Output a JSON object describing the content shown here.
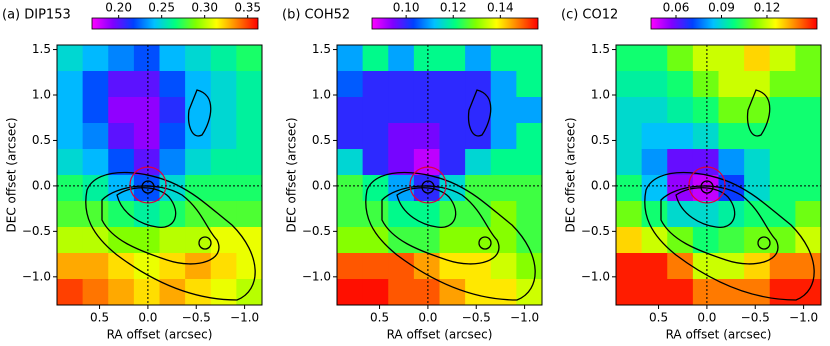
{
  "chart_data": [
    {
      "type": "heatmap",
      "title": "(a) DIP153",
      "xlabel": "RA offset (arcsec)",
      "ylabel": "DEC offset (arcsec)",
      "xlim": [
        0.94,
        -1.18
      ],
      "ylim": [
        -1.31,
        1.55
      ],
      "xticks": [
        0.5,
        {
          "value": 0,
          "label": "0.0"
        },
        {
          "value": -0.5,
          "label": "−0.5"
        },
        {
          "value": -1,
          "label": "−1.0"
        }
      ],
      "yticks": [
        1.5,
        {
          "value": 1,
          "label": "1.0"
        },
        0.5,
        {
          "value": 0,
          "label": "0.0"
        },
        {
          "value": -0.5,
          "label": "−0.5"
        },
        {
          "value": -1,
          "label": "−1.0"
        }
      ],
      "clim": [
        0.169,
        0.362
      ],
      "cticks": [
        {
          "value": 0.2,
          "label": "0.20"
        },
        {
          "value": 0.25,
          "label": "0.25"
        },
        {
          "value": 0.3,
          "label": "0.30"
        },
        {
          "value": 0.35,
          "label": "0.35"
        }
      ],
      "colormap": [
        "#ff00ff",
        "#8000ff",
        "#0040ff",
        "#00c0ff",
        "#00ff80",
        "#80ff00",
        "#ffff00",
        "#ff8000",
        "#ff0000"
      ],
      "z": [
        [
          0.25,
          0.24,
          0.23,
          0.22,
          0.24,
          0.25,
          0.26,
          0.27
        ],
        [
          0.24,
          0.22,
          0.2,
          0.2,
          0.22,
          0.24,
          0.25,
          0.26
        ],
        [
          0.24,
          0.22,
          0.19,
          0.19,
          0.21,
          0.24,
          0.25,
          0.26
        ],
        [
          0.24,
          0.23,
          0.2,
          0.19,
          0.22,
          0.24,
          0.25,
          0.26
        ],
        [
          0.25,
          0.24,
          0.22,
          0.2,
          0.23,
          0.25,
          0.26,
          0.26
        ],
        [
          0.27,
          0.26,
          0.24,
          0.22,
          0.25,
          0.27,
          0.27,
          0.27
        ],
        [
          0.28,
          0.28,
          0.27,
          0.26,
          0.27,
          0.28,
          0.28,
          0.28
        ],
        [
          0.3,
          0.3,
          0.29,
          0.29,
          0.3,
          0.3,
          0.31,
          0.31
        ],
        [
          0.33,
          0.33,
          0.32,
          0.31,
          0.32,
          0.33,
          0.32,
          0.31
        ],
        [
          0.35,
          0.34,
          0.33,
          0.32,
          0.33,
          0.32,
          0.31,
          0.3
        ]
      ]
    },
    {
      "type": "heatmap",
      "title": "(b) COH52",
      "xlabel": "RA offset (arcsec)",
      "ylabel": "DEC offset (arcsec)",
      "xlim": [
        0.94,
        -1.18
      ],
      "ylim": [
        -1.31,
        1.55
      ],
      "xticks": [
        0.5,
        {
          "value": 0,
          "label": "0.0"
        },
        {
          "value": -0.5,
          "label": "−0.5"
        },
        {
          "value": -1,
          "label": "−1.0"
        }
      ],
      "yticks": [
        1.5,
        {
          "value": 1,
          "label": "1.0"
        },
        0.5,
        {
          "value": 0,
          "label": "0.0"
        },
        {
          "value": -0.5,
          "label": "−0.5"
        },
        {
          "value": -1,
          "label": "−1.0"
        }
      ],
      "clim": [
        0.0855,
        0.156
      ],
      "cticks": [
        {
          "value": 0.1,
          "label": "0.10"
        },
        0.12,
        0.14
      ],
      "colormap": [
        "#ff00ff",
        "#8000ff",
        "#0040ff",
        "#00c0ff",
        "#00ff80",
        "#80ff00",
        "#ffff00",
        "#ff8000",
        "#ff0000"
      ],
      "z": [
        [
          0.11,
          0.12,
          0.11,
          0.12,
          0.12,
          0.11,
          0.12,
          0.12
        ],
        [
          0.105,
          0.1,
          0.1,
          0.1,
          0.1,
          0.1,
          0.11,
          0.12
        ],
        [
          0.1,
          0.1,
          0.1,
          0.1,
          0.1,
          0.1,
          0.11,
          0.11
        ],
        [
          0.1,
          0.1,
          0.095,
          0.095,
          0.1,
          0.1,
          0.11,
          0.12
        ],
        [
          0.115,
          0.1,
          0.095,
          0.09,
          0.1,
          0.115,
          0.12,
          0.12
        ],
        [
          0.125,
          0.12,
          0.11,
          0.1,
          0.115,
          0.125,
          0.125,
          0.125
        ],
        [
          0.125,
          0.125,
          0.12,
          0.12,
          0.125,
          0.125,
          0.13,
          0.125
        ],
        [
          0.13,
          0.13,
          0.125,
          0.125,
          0.13,
          0.13,
          0.13,
          0.125
        ],
        [
          0.15,
          0.15,
          0.15,
          0.145,
          0.14,
          0.14,
          0.135,
          0.13
        ],
        [
          0.155,
          0.155,
          0.15,
          0.15,
          0.145,
          0.14,
          0.14,
          0.135
        ]
      ]
    },
    {
      "type": "heatmap",
      "title": "(c) CO12",
      "xlabel": "RA offset (arcsec)",
      "ylabel": "DEC offset (arcsec)",
      "xlim": [
        0.94,
        -1.18
      ],
      "ylim": [
        -1.31,
        1.55
      ],
      "xticks": [
        0.5,
        {
          "value": 0,
          "label": "0.0"
        },
        {
          "value": -0.5,
          "label": "−0.5"
        },
        {
          "value": -1,
          "label": "−1.0"
        }
      ],
      "yticks": [
        1.5,
        {
          "value": 1,
          "label": "1.0"
        },
        0.5,
        {
          "value": 0,
          "label": "0.0"
        },
        {
          "value": -0.5,
          "label": "−0.5"
        },
        {
          "value": -1,
          "label": "−1.0"
        }
      ],
      "clim": [
        0.0435,
        0.153
      ],
      "cticks": [
        0.06,
        0.09,
        0.12
      ],
      "colormap": [
        "#ff00ff",
        "#8000ff",
        "#0040ff",
        "#00c0ff",
        "#00ff80",
        "#80ff00",
        "#ffff00",
        "#ff8000",
        "#ff0000"
      ],
      "z": [
        [
          0.1,
          0.1,
          0.11,
          0.12,
          0.12,
          0.13,
          0.12,
          0.11
        ],
        [
          0.095,
          0.095,
          0.1,
          0.11,
          0.12,
          0.12,
          0.11,
          0.11
        ],
        [
          0.09,
          0.09,
          0.095,
          0.1,
          0.11,
          0.11,
          0.1,
          0.1
        ],
        [
          0.09,
          0.085,
          0.085,
          0.09,
          0.1,
          0.1,
          0.1,
          0.1
        ],
        [
          0.09,
          0.08,
          0.06,
          0.06,
          0.08,
          0.09,
          0.1,
          0.1
        ],
        [
          0.1,
          0.085,
          0.055,
          0.05,
          0.07,
          0.09,
          0.1,
          0.1
        ],
        [
          0.11,
          0.1,
          0.09,
          0.09,
          0.095,
          0.1,
          0.1,
          0.11
        ],
        [
          0.13,
          0.12,
          0.11,
          0.1,
          0.105,
          0.11,
          0.11,
          0.12
        ],
        [
          0.15,
          0.15,
          0.14,
          0.12,
          0.12,
          0.13,
          0.14,
          0.14
        ],
        [
          0.15,
          0.15,
          0.15,
          0.14,
          0.14,
          0.14,
          0.15,
          0.15
        ]
      ]
    }
  ]
}
